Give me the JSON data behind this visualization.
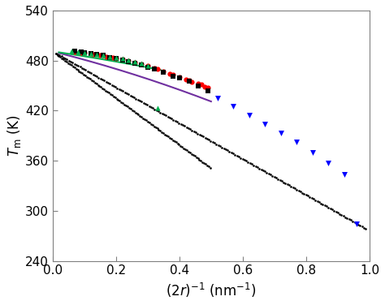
{
  "xlabel": "$(2r)^{-1}$ (nm$^{-1}$)",
  "ylabel": "$T_{\\mathrm{m}}$ (K)",
  "xlim": [
    0.0,
    1.0
  ],
  "ylim": [
    240,
    540
  ],
  "yticks": [
    240,
    300,
    360,
    420,
    480,
    540
  ],
  "xticks": [
    0.0,
    0.2,
    0.4,
    0.6,
    0.8,
    1.0
  ],
  "background_color": "#ffffff",
  "T0": 491.0,
  "red_circles": [
    [
      0.07,
      490
    ],
    [
      0.09,
      489
    ],
    [
      0.1,
      489
    ],
    [
      0.12,
      488
    ],
    [
      0.13,
      487
    ],
    [
      0.15,
      486
    ],
    [
      0.16,
      486
    ],
    [
      0.17,
      485
    ],
    [
      0.19,
      484
    ],
    [
      0.2,
      483
    ],
    [
      0.22,
      482
    ],
    [
      0.24,
      480
    ],
    [
      0.26,
      478
    ],
    [
      0.28,
      476
    ],
    [
      0.3,
      474
    ],
    [
      0.32,
      471
    ],
    [
      0.33,
      470
    ],
    [
      0.35,
      467
    ],
    [
      0.37,
      464
    ],
    [
      0.38,
      463
    ],
    [
      0.4,
      460
    ],
    [
      0.42,
      457
    ],
    [
      0.43,
      456
    ],
    [
      0.44,
      454
    ],
    [
      0.46,
      452
    ],
    [
      0.47,
      451
    ],
    [
      0.48,
      449
    ],
    [
      0.49,
      448
    ]
  ],
  "black_squares": [
    [
      0.07,
      491
    ],
    [
      0.09,
      490
    ],
    [
      0.1,
      489
    ],
    [
      0.12,
      488
    ],
    [
      0.14,
      487
    ],
    [
      0.16,
      486
    ],
    [
      0.18,
      484
    ],
    [
      0.2,
      483
    ],
    [
      0.22,
      481
    ],
    [
      0.24,
      479
    ],
    [
      0.26,
      477
    ],
    [
      0.28,
      475
    ],
    [
      0.3,
      472
    ],
    [
      0.32,
      470
    ],
    [
      0.35,
      466
    ],
    [
      0.38,
      461
    ],
    [
      0.4,
      459
    ],
    [
      0.43,
      455
    ],
    [
      0.46,
      450
    ],
    [
      0.49,
      444
    ]
  ],
  "green_triangles_up": [
    [
      0.06,
      491
    ],
    [
      0.08,
      490
    ],
    [
      0.1,
      489
    ],
    [
      0.12,
      488
    ],
    [
      0.14,
      487
    ],
    [
      0.16,
      486
    ],
    [
      0.18,
      485
    ],
    [
      0.2,
      484
    ],
    [
      0.22,
      483
    ],
    [
      0.24,
      481
    ],
    [
      0.26,
      479
    ],
    [
      0.28,
      477
    ],
    [
      0.3,
      474
    ],
    [
      0.33,
      423
    ]
  ],
  "blue_triangles_down": [
    [
      0.52,
      435
    ],
    [
      0.57,
      425
    ],
    [
      0.62,
      415
    ],
    [
      0.67,
      404
    ],
    [
      0.72,
      393
    ],
    [
      0.77,
      382
    ],
    [
      0.82,
      370
    ],
    [
      0.87,
      357
    ],
    [
      0.92,
      344
    ],
    [
      0.96,
      284
    ]
  ],
  "dotted_line_main": {
    "T0": 491.0,
    "slope": -215.0,
    "color": "#000000"
  },
  "dotted_line_steep": {
    "T0": 491.0,
    "slope": -280.0,
    "color": "#000000",
    "x_end": 0.5
  },
  "purple_curve": {
    "T0": 491.0,
    "c": 95.0,
    "x_start": 0.02,
    "x_end": 0.5,
    "color": "#7030a0"
  },
  "green_curve": {
    "T0": 491.0,
    "c": 55.0,
    "x_start": 0.02,
    "x_end": 0.34,
    "color": "#00b050"
  }
}
